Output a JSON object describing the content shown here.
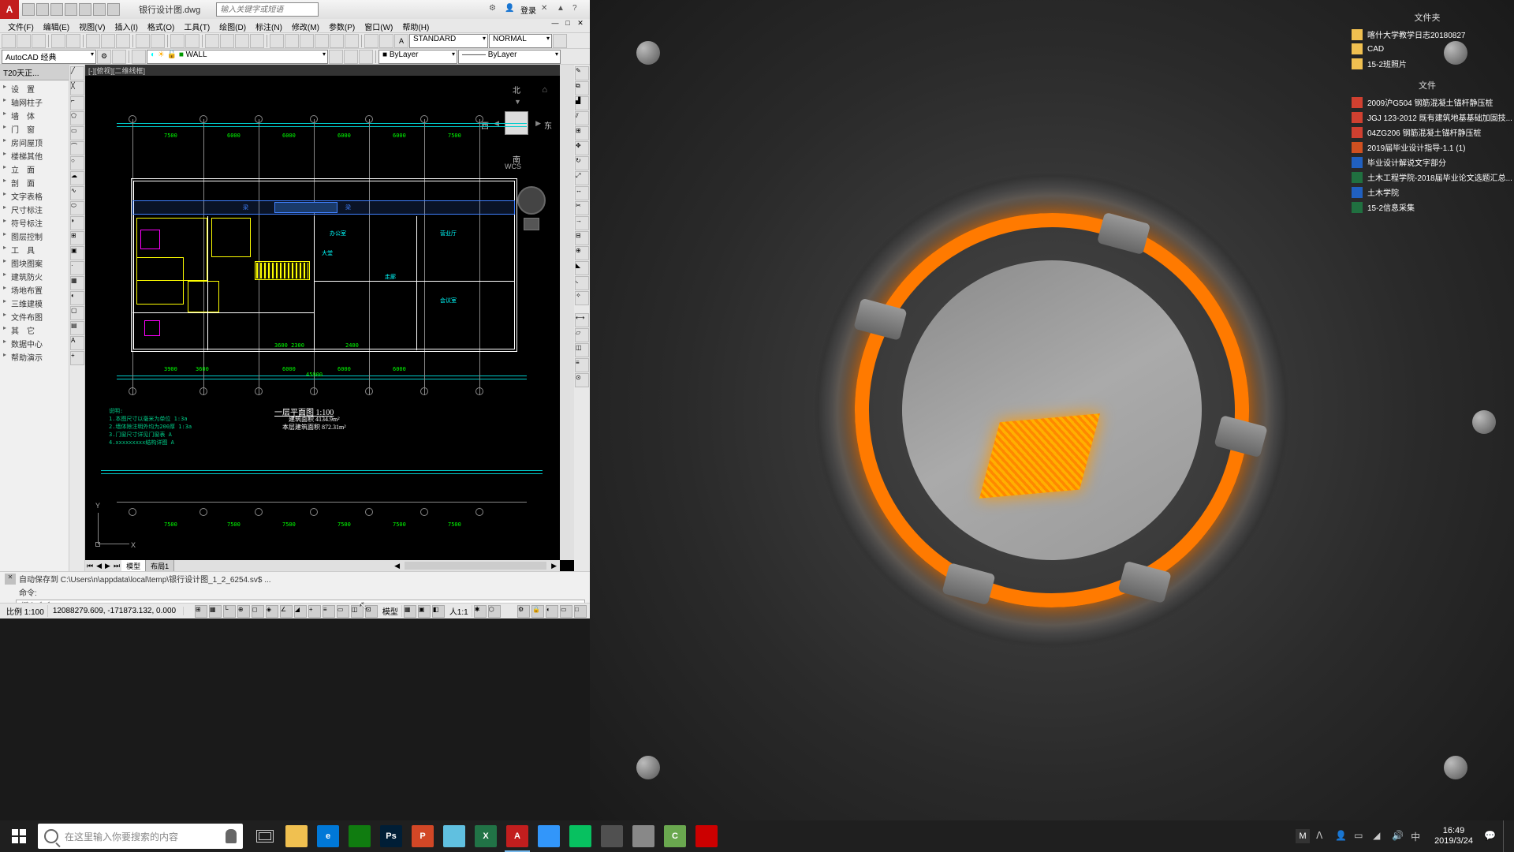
{
  "autocad": {
    "app_letter": "A",
    "title": "银行设计图.dwg",
    "search_placeholder": "输入关键字或短语",
    "login_label": "登录",
    "menus": [
      "文件(F)",
      "编辑(E)",
      "视图(V)",
      "插入(I)",
      "格式(O)",
      "工具(T)",
      "绘图(D)",
      "标注(N)",
      "修改(M)",
      "参数(P)",
      "窗口(W)",
      "帮助(H)"
    ],
    "workspace": "AutoCAD 经典",
    "style_dropdown": "STANDARD",
    "normal_dropdown": "NORMAL",
    "layer_name": "WALL",
    "layer_dropdown": "ByLayer",
    "linetype_dropdown": "ByLayer",
    "left_panel_title": "T20天正...",
    "left_panel_items": [
      "设　置",
      "轴网柱子",
      "墙　体",
      "门　窗",
      "房间屋顶",
      "楼梯其他",
      "立　面",
      "剖　面",
      "文字表格",
      "尺寸标注",
      "符号标注",
      "图层控制",
      "工　具",
      "图块图案",
      "建筑防火",
      "场地布置",
      "三维建模",
      "文件布图",
      "其　它",
      "数据中心",
      "帮助演示"
    ],
    "drawing_header": "[-][俯视][二维线框]",
    "plan_title": "一层平面图  1:100",
    "plan_area": "建筑面积  4134.9m²",
    "plan_note": "本层建筑面积  872.31m²",
    "view_compass": {
      "n": "北",
      "s": "南",
      "e": "东",
      "w": "西"
    },
    "wcs": "WCS",
    "axis_y": "Y",
    "axis_x": "X",
    "tabs": {
      "model": "模型",
      "layout": "布局1"
    },
    "cmd_autosave": "自动保存到 C:\\Users\\n\\appdata\\local\\temp\\银行设计图_1_2_6254.sv$ ...",
    "cmd_prompt": "命令:",
    "cmd_placeholder": "键入命令",
    "status_scale": "比例 1:100",
    "status_coords": "12088279.609, -171873.132, 0.000",
    "status_model": "模型",
    "status_annot": "人1:1",
    "colors": {
      "cyan": "#00ffff",
      "green": "#00ff00",
      "yellow": "#ffff00",
      "blue": "#4080ff",
      "magenta": "#ff00ff",
      "white": "#ffffff",
      "gray": "#888888"
    }
  },
  "desktop": {
    "folders_header": "文件夹",
    "folders": [
      {
        "name": "喀什大学教学日志20180827",
        "type": "folder"
      },
      {
        "name": "CAD",
        "type": "folder"
      },
      {
        "name": "15-2班照片",
        "type": "folder"
      }
    ],
    "files_header": "文件",
    "files": [
      {
        "name": "2009沪G504 钢筋混凝土锚杆静压桩",
        "type": "pdf"
      },
      {
        "name": "JGJ 123-2012 既有建筑地基基础加固技...",
        "type": "pdf"
      },
      {
        "name": "04ZG206 钢筋混凝土锚杆静压桩",
        "type": "pdf"
      },
      {
        "name": "2019届毕业设计指导-1.1 (1)",
        "type": "ppt"
      },
      {
        "name": "毕业设计解说文字部分",
        "type": "doc"
      },
      {
        "name": "土木工程学院-2018届毕业论文选题汇总...",
        "type": "xls"
      },
      {
        "name": "土木学院",
        "type": "doc"
      },
      {
        "name": "15-2信息采集",
        "type": "xls"
      }
    ]
  },
  "taskbar": {
    "search_placeholder": "在这里输入你要搜索的内容",
    "apps": [
      {
        "name": "file-explorer",
        "color": "#f0c050",
        "label": ""
      },
      {
        "name": "edge",
        "color": "#0078d7",
        "label": "e"
      },
      {
        "name": "store",
        "color": "#107c10",
        "label": ""
      },
      {
        "name": "photoshop",
        "color": "#001e36",
        "label": "Ps"
      },
      {
        "name": "powerpoint",
        "color": "#d24726",
        "label": "P"
      },
      {
        "name": "notepad",
        "color": "#60c0e0",
        "label": ""
      },
      {
        "name": "excel",
        "color": "#217346",
        "label": "X"
      },
      {
        "name": "autocad",
        "color": "#c21e1e",
        "label": "A",
        "active": true
      },
      {
        "name": "dingtalk",
        "color": "#3296fa",
        "label": ""
      },
      {
        "name": "wechat",
        "color": "#07c160",
        "label": ""
      },
      {
        "name": "calculator",
        "color": "#505050",
        "label": ""
      },
      {
        "name": "disc",
        "color": "#888888",
        "label": ""
      },
      {
        "name": "camtasia",
        "color": "#6aa84f",
        "label": "C"
      },
      {
        "name": "recorder",
        "color": "#cc0000",
        "label": ""
      }
    ],
    "tray_label": "M",
    "time": "16:49",
    "date": "2019/3/24"
  }
}
